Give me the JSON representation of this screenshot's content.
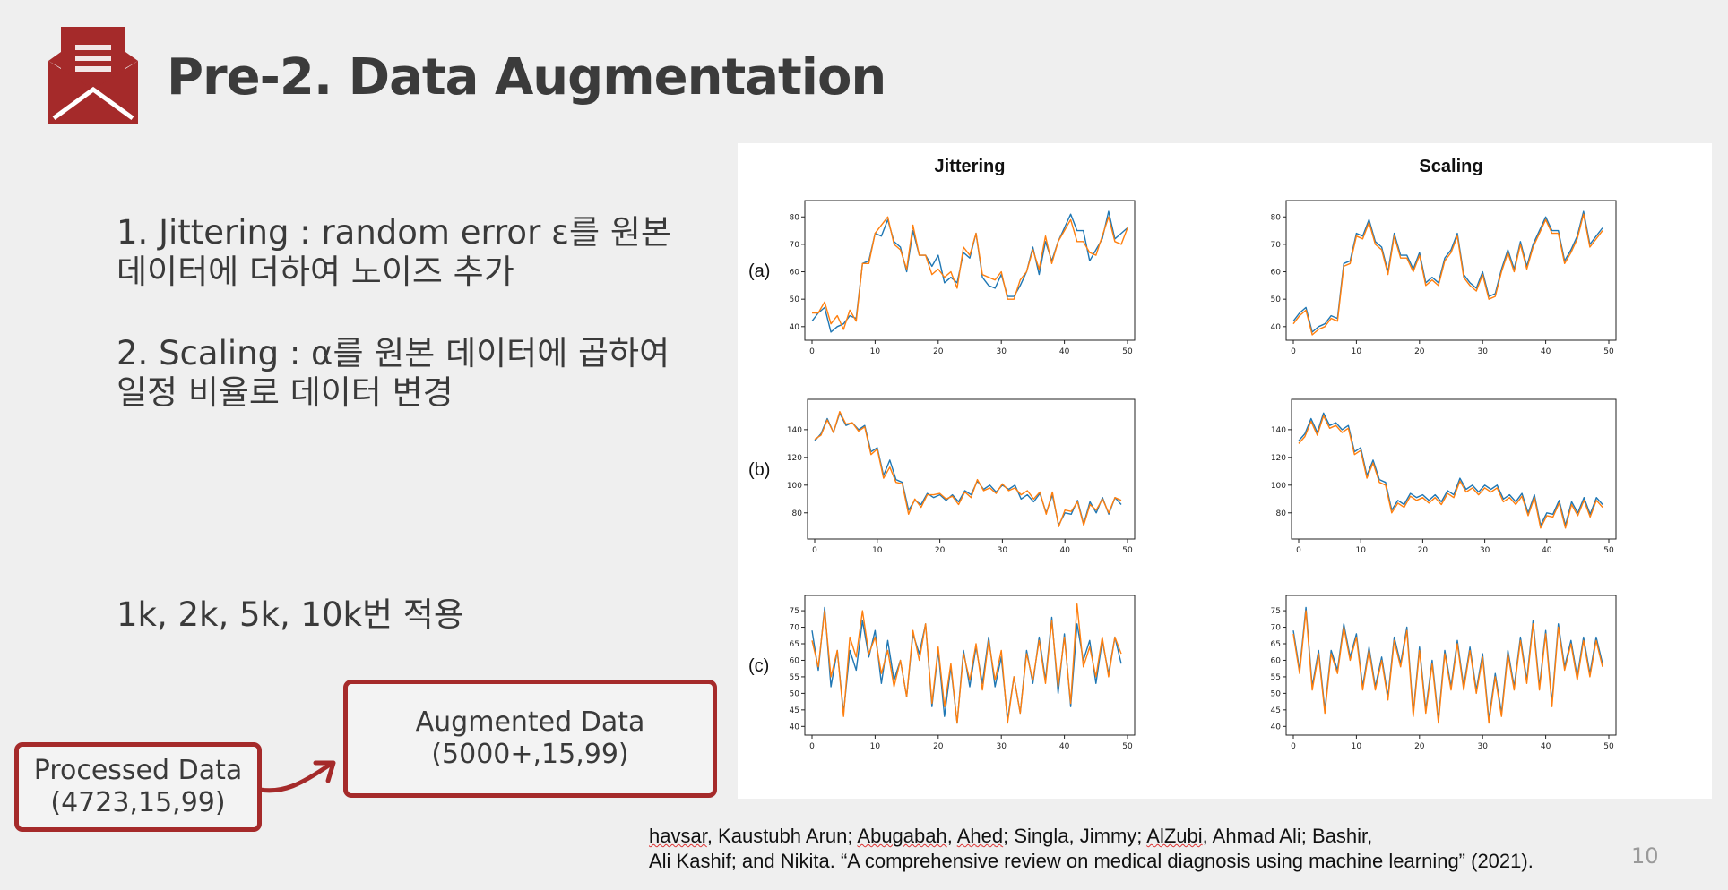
{
  "slide": {
    "title": "Pre-2. Data Augmentation",
    "bullets": {
      "jitter_line1": "1. Jittering :  random error ε를 원본",
      "jitter_line2": "데이터에 더하여 노이즈 추가",
      "scale_line1": "2. Scaling : α를 원본 데이터에 곱하여",
      "scale_line2": "일정 비율로 데이터 변경"
    },
    "apply": "1k, 2k, 5k, 10k번 적용",
    "processed": {
      "line1": "Processed Data",
      "line2": "(4723,15,99)"
    },
    "augmented": {
      "line1": "Augmented Data",
      "line2": "(5000+,15,99)"
    },
    "citation": {
      "p1": "havsar",
      "p2": ", Kaustubh Arun; ",
      "p3": "Abugabah",
      "p4": ", ",
      "p5": "Ahed",
      "p6": "; Singla, Jimmy; ",
      "p7": "AlZubi",
      "p8": ", Ahmad Ali; Bashir,",
      "line2": "Ali Kashif; and Nikita. “A comprehensive review on medical diagnosis using machine learning” (2021)."
    },
    "page_number": "10",
    "colors": {
      "accent": "#a52a2a",
      "series_original": "#1f77b4",
      "series_augmented": "#ff7f0e"
    }
  },
  "chart_data": [
    {
      "type": "line",
      "row": "(a)",
      "method": "Jittering",
      "title": "Jittering",
      "x_start": 0,
      "xlim": [
        0,
        50
      ],
      "xticks": [
        0,
        10,
        20,
        30,
        40,
        50
      ],
      "ylim": [
        37,
        84
      ],
      "yticks": [
        40,
        50,
        60,
        70,
        80
      ],
      "series": [
        {
          "values": [
            42,
            45,
            47,
            38,
            40,
            41,
            44,
            43,
            63,
            64,
            74,
            73,
            79,
            71,
            69,
            60,
            75,
            66,
            66,
            62,
            66,
            56,
            58,
            56,
            67,
            65,
            74,
            58,
            55,
            54,
            59,
            51,
            51,
            55,
            60,
            69,
            59,
            71,
            64,
            71,
            76,
            81,
            75,
            75,
            64,
            68,
            72,
            82,
            72,
            74,
            76
          ]
        },
        {
          "values": [
            45,
            45,
            49,
            41,
            44,
            39,
            46,
            42,
            63,
            63,
            74,
            77,
            80,
            70,
            68,
            61,
            77,
            66,
            66,
            59,
            61,
            58,
            60,
            54,
            69,
            66,
            74,
            59,
            58,
            57,
            60,
            50,
            50,
            57,
            60,
            68,
            61,
            73,
            63,
            71,
            75,
            79,
            71,
            71,
            67,
            66,
            73,
            80,
            71,
            70,
            76
          ]
        }
      ]
    },
    {
      "type": "line",
      "row": "(a)",
      "method": "Scaling",
      "title": "Scaling",
      "x_start": 0,
      "xlim": [
        0,
        50
      ],
      "xticks": [
        0,
        10,
        20,
        30,
        40,
        50
      ],
      "ylim": [
        37,
        84
      ],
      "yticks": [
        40,
        50,
        60,
        70,
        80
      ],
      "series": [
        {
          "values": [
            42,
            45,
            47,
            38,
            40,
            41,
            44,
            43,
            63,
            64,
            74,
            73,
            79,
            71,
            69,
            60,
            74,
            66,
            66,
            61,
            67,
            56,
            58,
            56,
            65,
            68,
            74,
            59,
            56,
            54,
            60,
            51,
            52,
            61,
            68,
            61,
            71,
            62,
            70,
            75,
            80,
            75,
            75,
            64,
            68,
            73,
            82,
            70,
            73,
            76
          ]
        },
        {
          "values": [
            41,
            44,
            46,
            37,
            39,
            40,
            43,
            42,
            62,
            63,
            73,
            72,
            78,
            70,
            68,
            59,
            73,
            65,
            65,
            60,
            66,
            55,
            57,
            55,
            64,
            67,
            73,
            58,
            55,
            53,
            59,
            50,
            51,
            60,
            67,
            60,
            70,
            61,
            69,
            74,
            79,
            74,
            74,
            63,
            67,
            72,
            81,
            69,
            72,
            75
          ]
        }
      ]
    },
    {
      "type": "line",
      "row": "(b)",
      "method": "Jittering",
      "x_start": 0,
      "xlim": [
        0,
        50
      ],
      "xticks": [
        0,
        10,
        20,
        30,
        40,
        50
      ],
      "ylim": [
        65,
        158
      ],
      "yticks": [
        80,
        100,
        120,
        140
      ],
      "series": [
        {
          "values": [
            132,
            137,
            148,
            138,
            152,
            143,
            145,
            140,
            143,
            124,
            127,
            107,
            118,
            104,
            102,
            82,
            89,
            86,
            94,
            91,
            93,
            89,
            93,
            88,
            96,
            93,
            103,
            97,
            100,
            95,
            100,
            97,
            100,
            90,
            93,
            88,
            94,
            80,
            93,
            71,
            80,
            79,
            89,
            72,
            88,
            80,
            91,
            79,
            91,
            86
          ]
        },
        {
          "values": [
            133,
            136,
            147,
            138,
            153,
            144,
            145,
            139,
            142,
            122,
            126,
            105,
            113,
            102,
            101,
            79,
            90,
            84,
            93,
            93,
            94,
            90,
            92,
            86,
            95,
            91,
            104,
            96,
            98,
            94,
            101,
            96,
            98,
            93,
            96,
            90,
            95,
            79,
            95,
            70,
            82,
            81,
            88,
            71,
            86,
            82,
            90,
            80,
            91,
            89
          ]
        }
      ]
    },
    {
      "type": "line",
      "row": "(b)",
      "method": "Scaling",
      "x_start": 0,
      "xlim": [
        0,
        50
      ],
      "xticks": [
        0,
        10,
        20,
        30,
        40,
        50
      ],
      "ylim": [
        65,
        158
      ],
      "yticks": [
        80,
        100,
        120,
        140
      ],
      "series": [
        {
          "values": [
            132,
            137,
            148,
            138,
            152,
            143,
            145,
            140,
            143,
            124,
            127,
            107,
            118,
            104,
            102,
            82,
            89,
            86,
            94,
            91,
            93,
            89,
            93,
            88,
            96,
            93,
            105,
            97,
            100,
            95,
            100,
            97,
            100,
            90,
            93,
            88,
            94,
            80,
            93,
            71,
            80,
            79,
            89,
            71,
            88,
            80,
            91,
            79,
            91,
            86
          ]
        },
        {
          "values": [
            130,
            135,
            146,
            136,
            150,
            141,
            143,
            138,
            141,
            122,
            125,
            105,
            116,
            102,
            100,
            80,
            87,
            84,
            92,
            89,
            91,
            87,
            91,
            86,
            94,
            91,
            103,
            95,
            98,
            93,
            98,
            95,
            98,
            88,
            91,
            86,
            92,
            78,
            91,
            69,
            78,
            77,
            87,
            69,
            86,
            78,
            89,
            77,
            89,
            84
          ]
        }
      ]
    },
    {
      "type": "line",
      "row": "(c)",
      "method": "Jittering",
      "x_start": 0,
      "xlim": [
        0,
        50
      ],
      "xticks": [
        0,
        10,
        20,
        30,
        40,
        50
      ],
      "ylim": [
        39,
        78
      ],
      "yticks": [
        40,
        45,
        50,
        55,
        60,
        65,
        70,
        75
      ],
      "series": [
        {
          "values": [
            69,
            57,
            76,
            52,
            63,
            44,
            63,
            57,
            72,
            61,
            69,
            53,
            66,
            54,
            60,
            49,
            68,
            62,
            71,
            46,
            63,
            43,
            58,
            41,
            63,
            52,
            64,
            53,
            67,
            52,
            61,
            42,
            55,
            44,
            63,
            53,
            67,
            54,
            73,
            50,
            68,
            46,
            71,
            60,
            66,
            53,
            66,
            56,
            67,
            59
          ]
        },
        {
          "values": [
            66,
            58,
            75,
            55,
            63,
            43,
            67,
            61,
            75,
            62,
            67,
            56,
            63,
            52,
            60,
            49,
            69,
            60,
            71,
            47,
            64,
            46,
            59,
            41,
            62,
            54,
            65,
            51,
            66,
            54,
            63,
            41,
            55,
            44,
            62,
            54,
            66,
            53,
            72,
            52,
            67,
            47,
            77,
            58,
            64,
            55,
            67,
            55,
            67,
            62
          ]
        }
      ]
    },
    {
      "type": "line",
      "row": "(c)",
      "method": "Scaling",
      "x_start": 0,
      "xlim": [
        0,
        50
      ],
      "xticks": [
        0,
        10,
        20,
        30,
        40,
        50
      ],
      "ylim": [
        39,
        78
      ],
      "yticks": [
        40,
        45,
        50,
        55,
        60,
        65,
        70,
        75
      ],
      "series": [
        {
          "values": [
            69,
            57,
            76,
            52,
            63,
            45,
            63,
            57,
            71,
            61,
            68,
            52,
            64,
            52,
            61,
            49,
            67,
            59,
            70,
            44,
            64,
            45,
            60,
            42,
            63,
            52,
            66,
            52,
            64,
            51,
            62,
            42,
            56,
            44,
            63,
            52,
            67,
            54,
            72,
            52,
            69,
            47,
            71,
            58,
            66,
            55,
            67,
            56,
            67,
            59
          ]
        },
        {
          "values": [
            68,
            56,
            75,
            51,
            62,
            44,
            62,
            56,
            70,
            60,
            67,
            51,
            63,
            51,
            60,
            48,
            66,
            58,
            69,
            43,
            63,
            44,
            59,
            41,
            62,
            51,
            65,
            51,
            63,
            50,
            61,
            41,
            55,
            43,
            62,
            51,
            66,
            53,
            71,
            51,
            68,
            46,
            70,
            57,
            65,
            54,
            66,
            55,
            66,
            58
          ]
        }
      ]
    }
  ]
}
